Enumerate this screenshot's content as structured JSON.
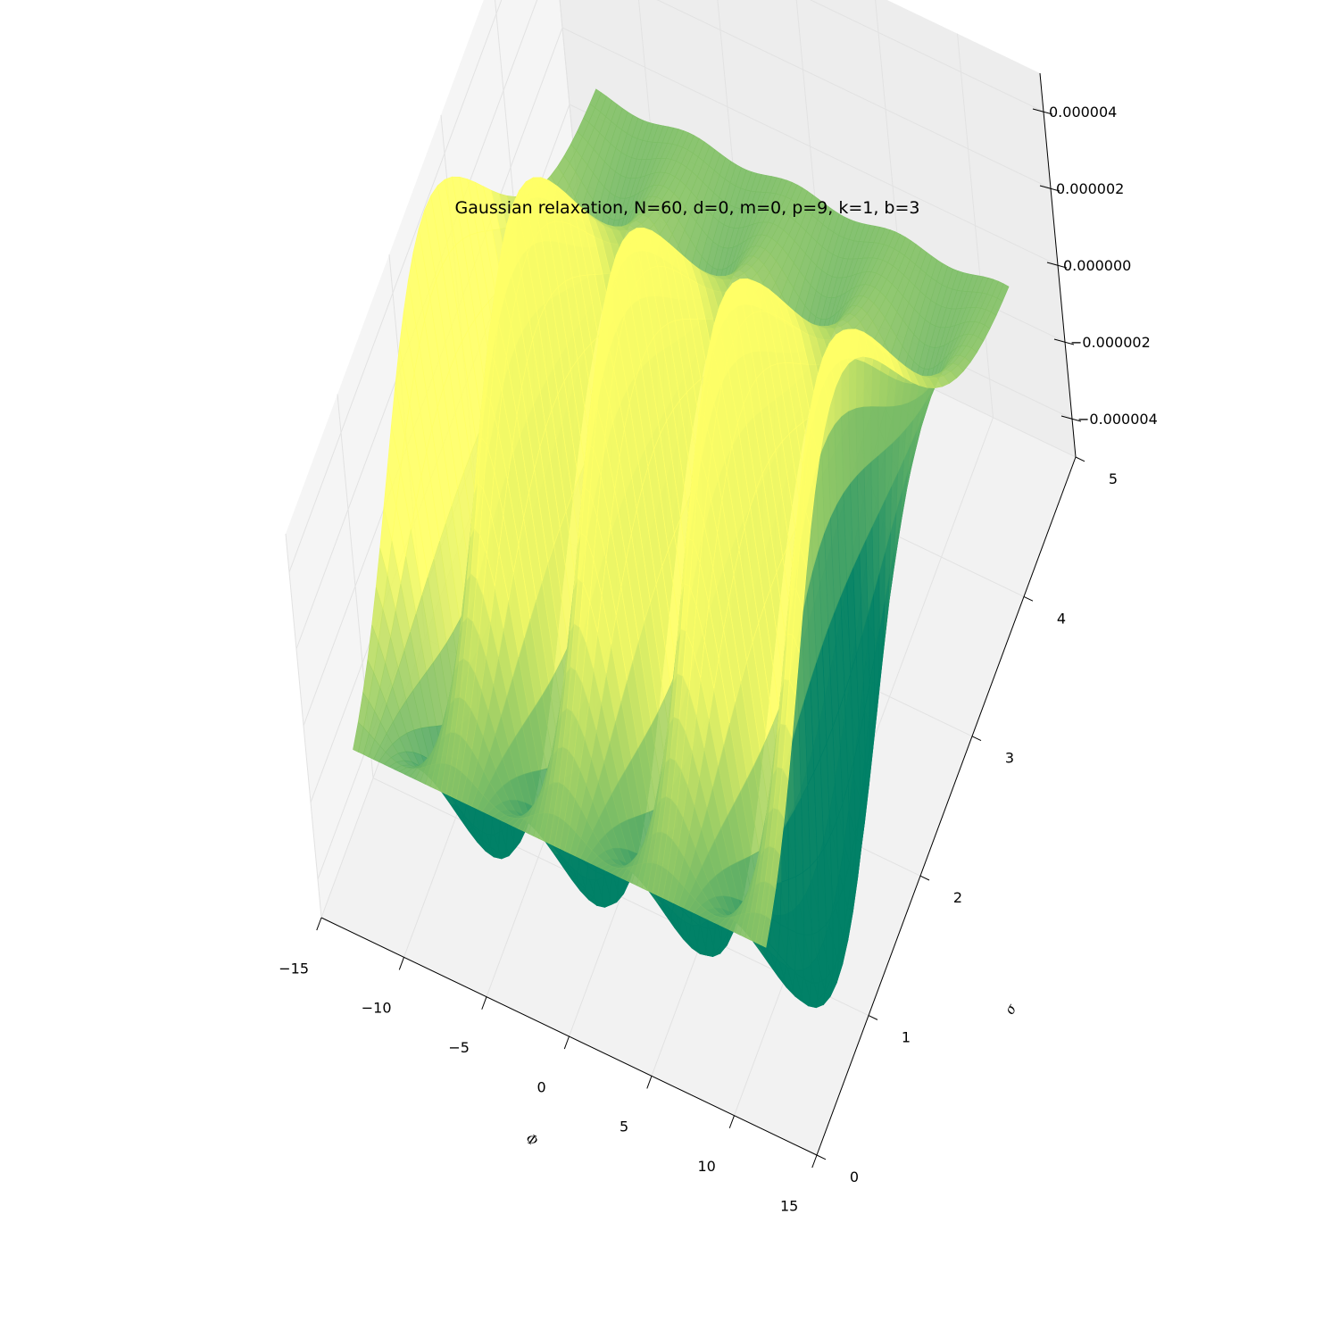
{
  "chart_data": {
    "type": "surface",
    "title": "Gaussian relaxation, N=60, d=0, m=0, p=9, k=1, b=3",
    "xlabel": "Φ",
    "ylabel": "σ",
    "zlabel": "",
    "xlim": [
      -15,
      15
    ],
    "ylim": [
      0,
      5
    ],
    "zlim": [
      -5e-06,
      5e-06
    ],
    "x_ticks": [
      "−15",
      "−10",
      "−5",
      "0",
      "5",
      "10",
      "15"
    ],
    "y_ticks": [
      "0",
      "1",
      "2",
      "3",
      "4",
      "5"
    ],
    "z_ticks": [
      "−0.000004",
      "−0.000002",
      "0.000000",
      "0.000002",
      "0.000004"
    ],
    "colormap": "summer",
    "surface": {
      "function": "z(Φ, σ) ≈ A·σ·exp(−(σ−1.3)²/2)·cos(Φ)",
      "x_range": [
        -12,
        13
      ],
      "y_range": [
        0,
        4.7
      ],
      "peak_amplitude": 4.5e-06,
      "trough_amplitude": -4.5e-06
    },
    "grid": true
  }
}
